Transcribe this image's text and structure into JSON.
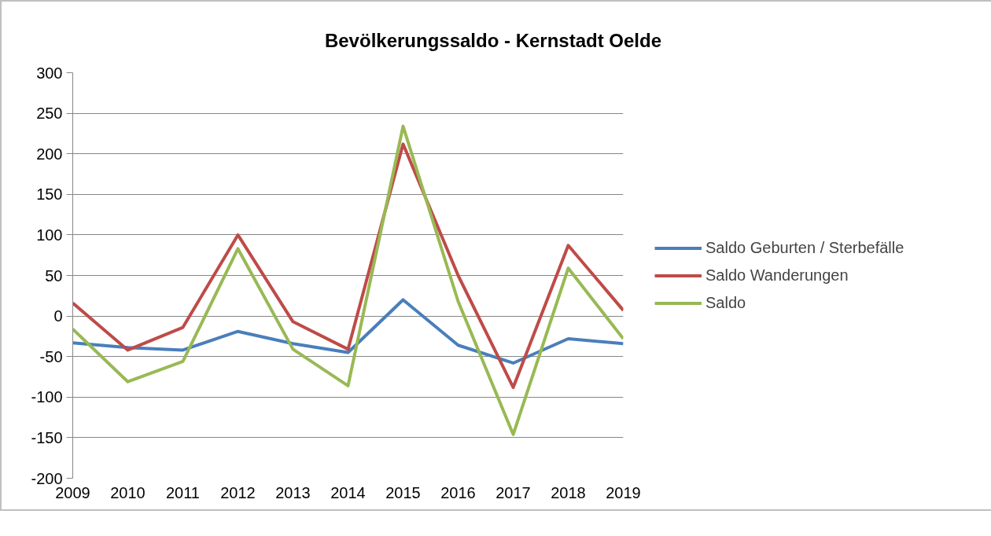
{
  "chart_data": {
    "type": "line",
    "title": "Bevölkerungssaldo - Kernstadt Oelde",
    "categories": [
      "2009",
      "2010",
      "2011",
      "2012",
      "2013",
      "2014",
      "2015",
      "2016",
      "2017",
      "2018",
      "2019"
    ],
    "series": [
      {
        "name": "Saldo Geburten / Sterbefälle",
        "color": "#4a7ebb",
        "values": [
          -33,
          -39,
          -42,
          -19,
          -34,
          -45,
          20,
          -36,
          -58,
          -28,
          -34
        ]
      },
      {
        "name": "Saldo Wanderungen",
        "color": "#be4b48",
        "values": [
          16,
          -42,
          -14,
          100,
          -7,
          -41,
          212,
          50,
          -88,
          87,
          7
        ]
      },
      {
        "name": "Saldo",
        "color": "#98b954",
        "values": [
          -16,
          -81,
          -56,
          83,
          -41,
          -86,
          234,
          18,
          -146,
          59,
          -28
        ]
      }
    ],
    "ylim": [
      -200,
      300
    ],
    "yticks": [
      -200,
      -150,
      -100,
      -50,
      0,
      50,
      100,
      150,
      200,
      250,
      300
    ],
    "grid": "y",
    "legend": "right",
    "line_style": "solid",
    "marker": "none"
  }
}
